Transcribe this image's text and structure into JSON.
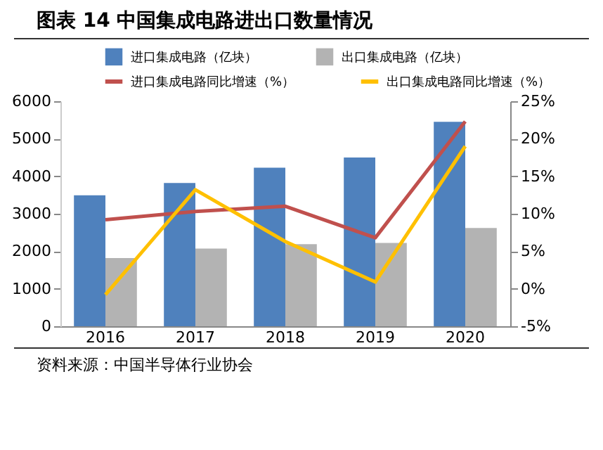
{
  "chart_data": {
    "type": "bar",
    "title": "图表 14 中国集成电路进出口数量情况",
    "categories": [
      "2016",
      "2017",
      "2018",
      "2019",
      "2020"
    ],
    "series": [
      {
        "name": "进口集成电路（亿块）",
        "color": "#4f81bd",
        "values": [
          3490,
          3820,
          4230,
          4500,
          5450
        ]
      },
      {
        "name": "出口集成电路（亿块）",
        "color": "#b3b3b3",
        "values": [
          1820,
          2070,
          2190,
          2220,
          2620
        ]
      },
      {
        "name": "进口集成电路同比增速（%）",
        "type": "line",
        "axis": "y2",
        "color": "#c0504d",
        "values": [
          9.2,
          10.3,
          11.0,
          6.8,
          22.3
        ]
      },
      {
        "name": "出口集成电路同比增速（%）",
        "type": "line",
        "axis": "y2",
        "color": "#ffc000",
        "values": [
          -0.8,
          13.2,
          6.3,
          0.9,
          19.0
        ]
      }
    ],
    "ylim": [
      0,
      6000
    ],
    "yticks": [
      0,
      1000,
      2000,
      3000,
      4000,
      5000,
      6000
    ],
    "y2lim": [
      -5,
      25
    ],
    "y2ticks": [
      {
        "value": -5,
        "label": "-5%"
      },
      {
        "value": 0,
        "label": "0%"
      },
      {
        "value": 5,
        "label": "5%"
      },
      {
        "value": 10,
        "label": "10%"
      },
      {
        "value": 15,
        "label": "15%"
      },
      {
        "value": 20,
        "label": "20%"
      },
      {
        "value": 25,
        "label": "25%"
      }
    ],
    "legend": "top",
    "grid": false,
    "annotations": [
      "资料来源：中国半导体行业协会"
    ]
  }
}
